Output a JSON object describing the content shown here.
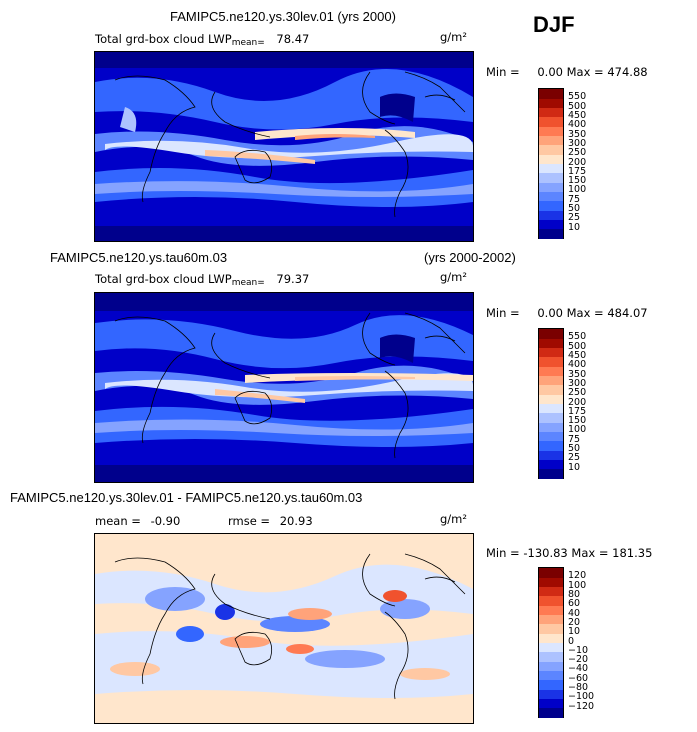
{
  "season": "DJF",
  "chart_data": [
    {
      "type": "heatmap",
      "title": "FAMIPC5.ne120.ys.30lev.01 (yrs 2000)",
      "variable": "Total grd-box cloud LWP",
      "mean_label": "mean=",
      "mean": "78.47",
      "units": "g/m²",
      "min_label": "Min =",
      "min": "0.00",
      "max_label": "Max =",
      "max": "474.88",
      "levels": [
        "10",
        "25",
        "50",
        "75",
        "100",
        "150",
        "175",
        "200",
        "250",
        "300",
        "350",
        "400",
        "450",
        "500",
        "550"
      ],
      "colors": [
        "#00008c",
        "#0000c8",
        "#1a33e6",
        "#3366ff",
        "#5c85ff",
        "#85a3ff",
        "#adc2ff",
        "#dbe6ff",
        "#ffe6cc",
        "#ffc8a3",
        "#ffa37a",
        "#ff7a52",
        "#f0522e",
        "#d02a14",
        "#a00a00",
        "#7a0000"
      ]
    },
    {
      "type": "heatmap",
      "title": "FAMIPC5.ne120.ys.tau60m.03",
      "years": "(yrs 2000-2002)",
      "variable": "Total grd-box cloud LWP",
      "mean_label": "mean=",
      "mean": "79.37",
      "units": "g/m²",
      "min_label": "Min =",
      "min": "0.00",
      "max_label": "Max =",
      "max": "484.07",
      "levels": [
        "10",
        "25",
        "50",
        "75",
        "100",
        "150",
        "175",
        "200",
        "250",
        "300",
        "350",
        "400",
        "450",
        "500",
        "550"
      ],
      "colors": [
        "#00008c",
        "#0000c8",
        "#1a33e6",
        "#3366ff",
        "#5c85ff",
        "#85a3ff",
        "#adc2ff",
        "#dbe6ff",
        "#ffe6cc",
        "#ffc8a3",
        "#ffa37a",
        "#ff7a52",
        "#f0522e",
        "#d02a14",
        "#a00a00",
        "#7a0000"
      ]
    },
    {
      "type": "heatmap",
      "title": "FAMIPC5.ne120.ys.30lev.01 - FAMIPC5.ne120.ys.tau60m.03",
      "mean_label": "mean =",
      "mean": "-0.90",
      "rmse_label": "rmse =",
      "rmse": "20.93",
      "units": "g/m²",
      "min_label": "Min =",
      "min": "-130.83",
      "max_label": "Max =",
      "max": "181.35",
      "levels": [
        "−120",
        "−100",
        "−80",
        "−60",
        "−40",
        "−20",
        "−10",
        "0",
        "10",
        "20",
        "40",
        "60",
        "80",
        "100",
        "120"
      ],
      "colors": [
        "#00008c",
        "#0000c8",
        "#1a33e6",
        "#3366ff",
        "#5c85ff",
        "#85a3ff",
        "#adc2ff",
        "#dbe6ff",
        "#ffe6cc",
        "#ffc8a3",
        "#ffa37a",
        "#ff7a52",
        "#f0522e",
        "#d02a14",
        "#a00a00",
        "#7a0000"
      ]
    }
  ]
}
